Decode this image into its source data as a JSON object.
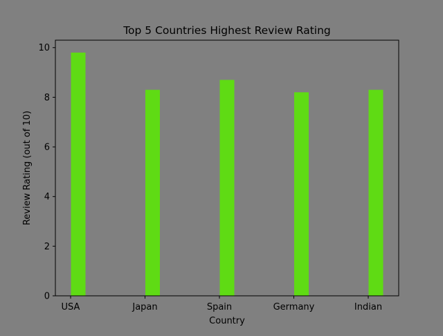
{
  "chart_data": {
    "type": "bar",
    "title": "Top 5 Countries Highest Review Rating",
    "xlabel": "Country",
    "ylabel": "Review Rating (out of 10)",
    "categories": [
      "USA",
      "Japan",
      "Spain",
      "Germany",
      "Indian"
    ],
    "values": [
      9.8,
      8.3,
      8.7,
      8.2,
      8.3
    ],
    "ylim": [
      0,
      10.3
    ],
    "yticks": [
      "0",
      "2",
      "4",
      "6",
      "8",
      "10"
    ],
    "grid": false,
    "legend": "none",
    "colors": {
      "background": "#808080",
      "bar": "#5fdb14",
      "axis": "#000000"
    }
  }
}
